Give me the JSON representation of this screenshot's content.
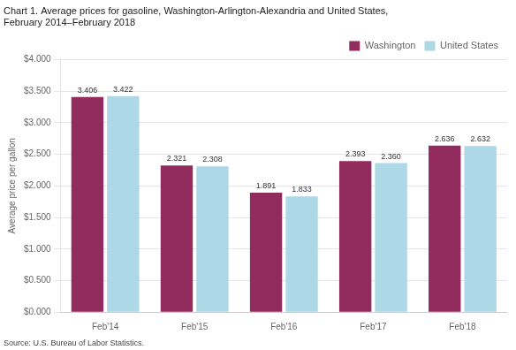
{
  "chart_data": {
    "type": "bar",
    "title": [
      "Chart 1. Average prices for gasoline, Washington-Arlington-Alexandria and United States,",
      "February 2014–February 2018"
    ],
    "ylabel": "Average price per gallon",
    "annotations": [
      "Source: U.S. Bureau of Labor Statistics."
    ],
    "categories": [
      "Feb'14",
      "Feb'15",
      "Feb'16",
      "Feb'17",
      "Feb'18"
    ],
    "series": [
      {
        "name": "Washington",
        "color": "#922B5E",
        "values": [
          3.406,
          2.321,
          1.891,
          2.393,
          2.636
        ],
        "value_labels": [
          "3.406",
          "2.321",
          "1.891",
          "2.393",
          "2.636"
        ]
      },
      {
        "name": "United States",
        "color": "#ADD8E6",
        "values": [
          3.422,
          2.308,
          1.833,
          2.36,
          2.632
        ],
        "value_labels": [
          "3.422",
          "2.308",
          "1.833",
          "2.360",
          "2.632"
        ]
      }
    ],
    "ylim": [
      0,
      4.0
    ],
    "yticks": [
      {
        "value": 0.0,
        "label": "$0.000"
      },
      {
        "value": 0.5,
        "label": "$0.500"
      },
      {
        "value": 1.0,
        "label": "$1.000"
      },
      {
        "value": 1.5,
        "label": "$1.500"
      },
      {
        "value": 2.0,
        "label": "$2.000"
      },
      {
        "value": 2.5,
        "label": "$2.500"
      },
      {
        "value": 3.0,
        "label": "$3.000"
      },
      {
        "value": 3.5,
        "label": "$3.500"
      },
      {
        "value": 4.0,
        "label": "$4.000"
      }
    ],
    "grid": true,
    "legend": "upper right",
    "data_labels": true
  }
}
